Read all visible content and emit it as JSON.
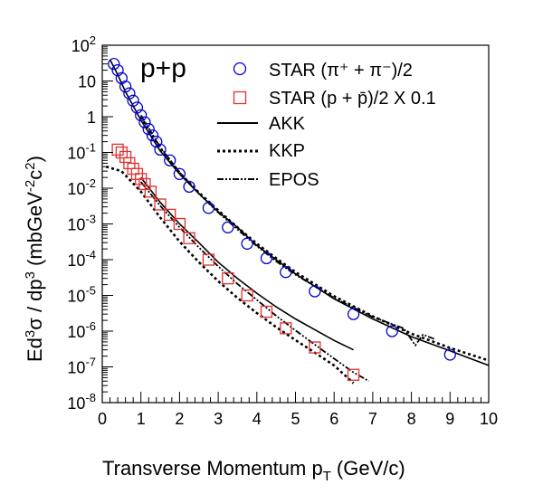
{
  "chart_data": {
    "type": "scatter",
    "system_label": "p+p",
    "xlabel": "Transverse Momentum p",
    "xlabel_sub": "T",
    "xlabel_unit": "(GeV/c)",
    "ylabel_main": "Ed",
    "ylabel_sup1": "3",
    "ylabel_mid": "σ / dp",
    "ylabel_sup2": "3",
    "ylabel_unit_pre": "(mbGeV",
    "ylabel_unit_sup1": "-2",
    "ylabel_unit_mid": "c",
    "ylabel_unit_sup2": "2",
    "ylabel_unit_post": ")",
    "xlim": [
      0,
      10
    ],
    "ylim": [
      1e-08,
      100
    ],
    "yscale": "log",
    "legend_placement": "top-right",
    "x_ticks": [
      "0",
      "1",
      "2",
      "3",
      "4",
      "5",
      "6",
      "7",
      "8",
      "9",
      "10"
    ],
    "y_ticks": [
      {
        "base": "10",
        "exp": "2",
        "value": 100
      },
      {
        "base": "10",
        "exp": "",
        "value": 10
      },
      {
        "base": "1",
        "exp": "",
        "value": 1
      },
      {
        "base": "10",
        "exp": "-1",
        "value": 0.1
      },
      {
        "base": "10",
        "exp": "-2",
        "value": 0.01
      },
      {
        "base": "10",
        "exp": "-3",
        "value": 0.001
      },
      {
        "base": "10",
        "exp": "-4",
        "value": 0.0001
      },
      {
        "base": "10",
        "exp": "-5",
        "value": 1e-05
      },
      {
        "base": "10",
        "exp": "-6",
        "value": 1e-06
      },
      {
        "base": "10",
        "exp": "-7",
        "value": 1e-07
      },
      {
        "base": "10",
        "exp": "-8",
        "value": 1e-08
      }
    ],
    "legend": {
      "pion": "STAR (π⁺ + π⁻)/2",
      "proton": "STAR (p + p̄)/2 X 0.1",
      "akk": "AKK",
      "kkp": "KKP",
      "epos": "EPOS"
    },
    "colors": {
      "pion": "#0000cc",
      "proton": "#e03030",
      "curves": "#000000"
    },
    "markers": {
      "pion": [
        {
          "x": 0.3,
          "y": 30
        },
        {
          "x": 0.4,
          "y": 20
        },
        {
          "x": 0.5,
          "y": 12
        },
        {
          "x": 0.6,
          "y": 7
        },
        {
          "x": 0.7,
          "y": 4.5
        },
        {
          "x": 0.8,
          "y": 2.8
        },
        {
          "x": 0.9,
          "y": 1.8
        },
        {
          "x": 1.0,
          "y": 1.1
        },
        {
          "x": 1.1,
          "y": 0.7
        },
        {
          "x": 1.2,
          "y": 0.45
        },
        {
          "x": 1.3,
          "y": 0.3
        },
        {
          "x": 1.4,
          "y": 0.2
        },
        {
          "x": 1.5,
          "y": 0.12
        },
        {
          "x": 1.75,
          "y": 0.06
        },
        {
          "x": 2.0,
          "y": 0.025
        },
        {
          "x": 2.25,
          "y": 0.011
        },
        {
          "x": 2.75,
          "y": 0.0028
        },
        {
          "x": 3.25,
          "y": 0.0008
        },
        {
          "x": 3.75,
          "y": 0.00028
        },
        {
          "x": 4.25,
          "y": 0.00011
        },
        {
          "x": 4.75,
          "y": 4.5e-05
        },
        {
          "x": 5.5,
          "y": 1.3e-05
        },
        {
          "x": 6.5,
          "y": 3e-06
        },
        {
          "x": 7.5,
          "y": 1e-06
        },
        {
          "x": 9.0,
          "y": 2.2e-07
        }
      ],
      "proton": [
        {
          "x": 0.4,
          "y": 0.12
        },
        {
          "x": 0.5,
          "y": 0.1
        },
        {
          "x": 0.6,
          "y": 0.075
        },
        {
          "x": 0.7,
          "y": 0.05
        },
        {
          "x": 0.8,
          "y": 0.035
        },
        {
          "x": 0.9,
          "y": 0.025
        },
        {
          "x": 1.0,
          "y": 0.018
        },
        {
          "x": 1.1,
          "y": 0.013
        },
        {
          "x": 1.25,
          "y": 0.008
        },
        {
          "x": 1.5,
          "y": 0.0035
        },
        {
          "x": 1.75,
          "y": 0.0018
        },
        {
          "x": 2.0,
          "y": 0.001
        },
        {
          "x": 2.25,
          "y": 0.0004
        },
        {
          "x": 2.75,
          "y": 0.0001
        },
        {
          "x": 3.25,
          "y": 3e-05
        },
        {
          "x": 3.75,
          "y": 1e-05
        },
        {
          "x": 4.25,
          "y": 3.5e-06
        },
        {
          "x": 4.75,
          "y": 1.2e-06
        },
        {
          "x": 5.5,
          "y": 3.5e-07
        },
        {
          "x": 6.5,
          "y": 6e-08
        }
      ]
    },
    "curves": {
      "akk_pion": [
        {
          "x": 0.2,
          "y": 40
        },
        {
          "x": 0.4,
          "y": 15
        },
        {
          "x": 0.6,
          "y": 5
        },
        {
          "x": 0.8,
          "y": 2
        },
        {
          "x": 1.0,
          "y": 0.8
        },
        {
          "x": 1.5,
          "y": 0.11
        },
        {
          "x": 2.0,
          "y": 0.025
        },
        {
          "x": 2.5,
          "y": 0.007
        },
        {
          "x": 3.0,
          "y": 0.0022
        },
        {
          "x": 3.5,
          "y": 0.0008
        },
        {
          "x": 4.0,
          "y": 0.00025
        },
        {
          "x": 4.5,
          "y": 0.0001
        },
        {
          "x": 5.0,
          "y": 4e-05
        },
        {
          "x": 6.0,
          "y": 8e-06
        },
        {
          "x": 7.0,
          "y": 2.2e-06
        },
        {
          "x": 8.0,
          "y": 7e-07
        },
        {
          "x": 9.0,
          "y": 2.8e-07
        },
        {
          "x": 10.0,
          "y": 1.1e-07
        }
      ],
      "kkp_pion": [
        {
          "x": 1.0,
          "y": 1.0
        },
        {
          "x": 1.5,
          "y": 0.13
        },
        {
          "x": 2.0,
          "y": 0.027
        },
        {
          "x": 2.5,
          "y": 0.0075
        },
        {
          "x": 3.0,
          "y": 0.0024
        },
        {
          "x": 3.5,
          "y": 0.0008
        },
        {
          "x": 4.0,
          "y": 0.00028
        },
        {
          "x": 4.5,
          "y": 0.00011
        },
        {
          "x": 5.0,
          "y": 4.5e-05
        },
        {
          "x": 6.0,
          "y": 9.5e-06
        },
        {
          "x": 7.0,
          "y": 2.6e-06
        },
        {
          "x": 8.0,
          "y": 8.5e-07
        },
        {
          "x": 9.0,
          "y": 3.4e-07
        },
        {
          "x": 10.0,
          "y": 1.5e-07
        }
      ],
      "epos_pion": [
        {
          "x": 1.0,
          "y": 1.1
        },
        {
          "x": 1.5,
          "y": 0.14
        },
        {
          "x": 2.0,
          "y": 0.028
        },
        {
          "x": 2.5,
          "y": 0.007
        },
        {
          "x": 3.0,
          "y": 0.0021
        },
        {
          "x": 3.5,
          "y": 0.0007
        },
        {
          "x": 4.0,
          "y": 0.00024
        },
        {
          "x": 4.5,
          "y": 9e-05
        },
        {
          "x": 5.0,
          "y": 3.8e-05
        },
        {
          "x": 6.0,
          "y": 8.5e-06
        },
        {
          "x": 7.0,
          "y": 2.5e-06
        },
        {
          "x": 7.8,
          "y": 1.2e-06
        },
        {
          "x": 8.1,
          "y": 4e-07
        },
        {
          "x": 8.3,
          "y": 8e-07
        },
        {
          "x": 8.6,
          "y": 6e-07
        }
      ],
      "akk_proton": [
        {
          "x": 1.0,
          "y": 0.02
        },
        {
          "x": 1.5,
          "y": 0.004
        },
        {
          "x": 2.0,
          "y": 0.001
        },
        {
          "x": 2.5,
          "y": 0.0003
        },
        {
          "x": 3.0,
          "y": 8.5e-05
        },
        {
          "x": 3.5,
          "y": 3e-05
        },
        {
          "x": 4.0,
          "y": 1.15e-05
        },
        {
          "x": 4.5,
          "y": 4.8e-06
        },
        {
          "x": 5.0,
          "y": 2.2e-06
        },
        {
          "x": 5.5,
          "y": 1.1e-06
        },
        {
          "x": 6.0,
          "y": 5.5e-07
        },
        {
          "x": 6.5,
          "y": 3e-07
        }
      ],
      "kkp_proton": [
        {
          "x": 0.1,
          "y": 0.04
        },
        {
          "x": 0.5,
          "y": 0.03
        },
        {
          "x": 1.0,
          "y": 0.008
        },
        {
          "x": 1.5,
          "y": 0.0015
        },
        {
          "x": 2.0,
          "y": 0.00032
        },
        {
          "x": 2.5,
          "y": 8.5e-05
        },
        {
          "x": 3.0,
          "y": 2.5e-05
        },
        {
          "x": 3.5,
          "y": 8.5e-06
        },
        {
          "x": 4.0,
          "y": 3.2e-06
        },
        {
          "x": 4.5,
          "y": 1.3e-06
        },
        {
          "x": 5.0,
          "y": 5.6e-07
        },
        {
          "x": 5.5,
          "y": 2.5e-07
        },
        {
          "x": 6.0,
          "y": 1.1e-07
        },
        {
          "x": 6.5,
          "y": 3.5e-08
        }
      ],
      "epos_proton": [
        {
          "x": 1.0,
          "y": 0.015
        },
        {
          "x": 1.5,
          "y": 0.0032
        },
        {
          "x": 2.0,
          "y": 0.0008
        },
        {
          "x": 2.5,
          "y": 0.00022
        },
        {
          "x": 3.0,
          "y": 6.5e-05
        },
        {
          "x": 3.5,
          "y": 2.1e-05
        },
        {
          "x": 4.0,
          "y": 7.5e-06
        },
        {
          "x": 4.5,
          "y": 2.7e-06
        },
        {
          "x": 5.0,
          "y": 1.05e-06
        },
        {
          "x": 5.5,
          "y": 4.2e-07
        },
        {
          "x": 6.0,
          "y": 1.7e-07
        },
        {
          "x": 6.5,
          "y": 7e-08
        },
        {
          "x": 6.9,
          "y": 4e-08
        }
      ]
    }
  }
}
